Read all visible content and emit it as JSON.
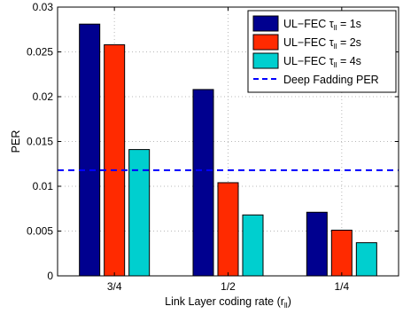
{
  "chart_data": {
    "type": "bar",
    "categories": [
      "3/4",
      "1/2",
      "1/4"
    ],
    "series": [
      {
        "name": "UL−FEC τll = 1s",
        "name_parts": [
          "UL−FEC τ",
          "ll",
          " = 1s"
        ],
        "color": "#00008f",
        "values": [
          0.0281,
          0.0208,
          0.0071
        ]
      },
      {
        "name": "UL−FEC τll = 2s",
        "name_parts": [
          "UL−FEC τ",
          "ll",
          " = 2s"
        ],
        "color": "#ff2a00",
        "values": [
          0.0258,
          0.0104,
          0.0051
        ]
      },
      {
        "name": "UL−FEC τll = 4s",
        "name_parts": [
          "UL−FEC τ",
          "ll",
          " = 4s"
        ],
        "color": "#00cfcf",
        "values": [
          0.0141,
          0.0068,
          0.0037
        ]
      }
    ],
    "reference_line": {
      "name": "Deep Fadding PER",
      "value": 0.0118,
      "color": "#0000ff",
      "style": "dashed"
    },
    "xlabel": "Link Layer coding rate (r",
    "xlabel_sub": "ll",
    "xlabel_close": ")",
    "ylabel": "PER",
    "ylim": [
      0,
      0.03
    ],
    "yticks": [
      "0",
      "0.005",
      "0.01",
      "0.015",
      "0.02",
      "0.025",
      "0.03"
    ],
    "ytick_values": [
      0,
      0.005,
      0.01,
      0.015,
      0.02,
      0.025,
      0.03
    ],
    "grid": true,
    "legend_position": "top-right"
  }
}
